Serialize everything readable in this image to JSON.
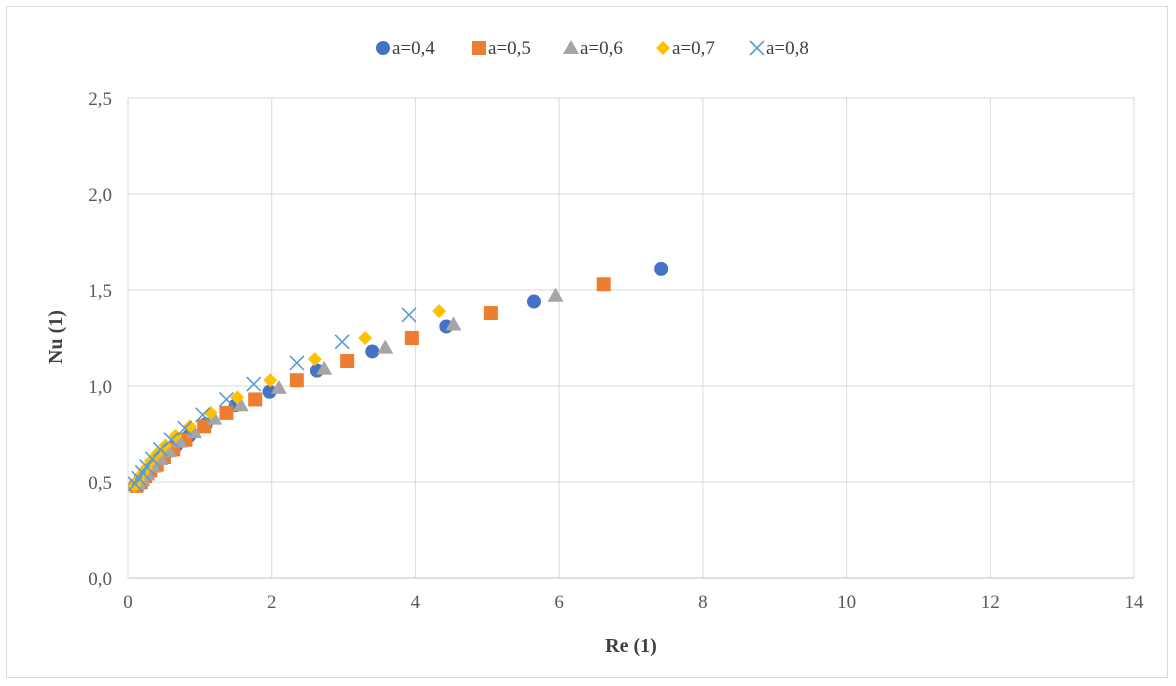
{
  "chart_data": {
    "type": "scatter",
    "title": "",
    "xlabel": "Re (1)",
    "ylabel": "Nu (1)",
    "xlim": [
      0,
      14
    ],
    "ylim": [
      0,
      2.5
    ],
    "x_ticks": [
      "0",
      "2",
      "4",
      "6",
      "8",
      "10",
      "12",
      "14"
    ],
    "y_ticks": [
      "0,0",
      "0,5",
      "1,0",
      "1,5",
      "2,0",
      "2,5"
    ],
    "grid": true,
    "legend_position": "top",
    "series": [
      {
        "name": "a=0,4",
        "marker": "circle",
        "color": "#4472C4",
        "x": [
          0.1,
          0.15,
          0.2,
          0.26,
          0.33,
          0.42,
          0.53,
          0.67,
          0.85,
          1.08,
          1.5,
          1.97,
          2.63,
          3.4,
          4.43,
          5.65,
          7.42
        ],
        "y": [
          0.48,
          0.5,
          0.52,
          0.55,
          0.58,
          0.61,
          0.65,
          0.69,
          0.74,
          0.8,
          0.9,
          0.97,
          1.08,
          1.18,
          1.31,
          1.44,
          1.61
        ]
      },
      {
        "name": "a=0,5",
        "marker": "square",
        "color": "#ED7D31",
        "x": [
          0.12,
          0.18,
          0.24,
          0.31,
          0.4,
          0.5,
          0.63,
          0.8,
          1.06,
          1.37,
          1.77,
          2.35,
          3.05,
          3.95,
          5.05,
          6.62
        ],
        "y": [
          0.48,
          0.5,
          0.53,
          0.56,
          0.59,
          0.63,
          0.67,
          0.72,
          0.79,
          0.86,
          0.93,
          1.03,
          1.13,
          1.25,
          1.38,
          1.53
        ]
      },
      {
        "name": "a=0,6",
        "marker": "triangle",
        "color": "#A5A5A5",
        "x": [
          0.14,
          0.2,
          0.27,
          0.35,
          0.45,
          0.57,
          0.72,
          0.92,
          1.2,
          1.57,
          2.1,
          2.73,
          3.58,
          4.53,
          5.95
        ],
        "y": [
          0.49,
          0.51,
          0.54,
          0.58,
          0.62,
          0.66,
          0.71,
          0.76,
          0.83,
          0.9,
          0.99,
          1.09,
          1.2,
          1.32,
          1.47
        ]
      },
      {
        "name": "a=0,7",
        "marker": "diamond",
        "color": "#FFC000",
        "x": [
          0.09,
          0.14,
          0.19,
          0.25,
          0.32,
          0.41,
          0.52,
          0.66,
          0.86,
          1.15,
          1.52,
          1.98,
          2.6,
          3.3,
          4.33
        ],
        "y": [
          0.48,
          0.51,
          0.54,
          0.57,
          0.61,
          0.65,
          0.69,
          0.74,
          0.79,
          0.86,
          0.94,
          1.03,
          1.14,
          1.25,
          1.39
        ]
      },
      {
        "name": "a=0,8",
        "marker": "x",
        "color": "#5B9BD5",
        "x": [
          0.1,
          0.15,
          0.2,
          0.26,
          0.34,
          0.45,
          0.6,
          0.79,
          1.04,
          1.37,
          1.75,
          2.35,
          2.98,
          3.91
        ],
        "y": [
          0.49,
          0.52,
          0.55,
          0.58,
          0.62,
          0.67,
          0.72,
          0.78,
          0.85,
          0.93,
          1.01,
          1.12,
          1.23,
          1.37
        ]
      }
    ]
  }
}
